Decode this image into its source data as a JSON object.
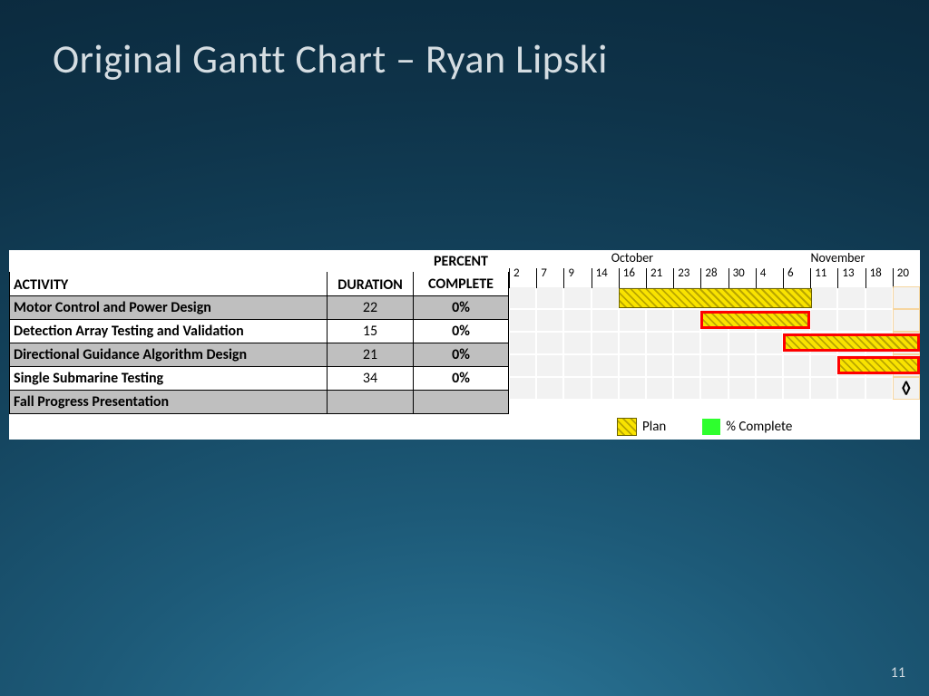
{
  "slide": {
    "title": "Original Gantt Chart – Ryan Lipski",
    "page_number": "11"
  },
  "headers": {
    "activity": "ACTIVITY",
    "duration": "DURATION",
    "percent_top": "PERCENT",
    "percent_bottom": "COMPLETE"
  },
  "months": [
    {
      "label": "October",
      "span_cols": 9
    },
    {
      "label": "November",
      "span_cols": 6
    }
  ],
  "ticks": [
    "2",
    "7",
    "9",
    "14",
    "16",
    "21",
    "23",
    "28",
    "30",
    "4",
    "6",
    "11",
    "13",
    "18",
    "20"
  ],
  "nTicks": 15,
  "today_col": 14,
  "rows": [
    {
      "activity": "Motor Control and Power Design",
      "duration": "22",
      "pct": "0%",
      "shade": true,
      "bars": [
        {
          "start": 4,
          "span": 7,
          "red": false
        }
      ]
    },
    {
      "activity": "Detection Array Testing and Validation",
      "duration": "15",
      "pct": "0%",
      "shade": false,
      "bars": [
        {
          "start": 7,
          "span": 4,
          "red": true
        }
      ]
    },
    {
      "activity": "Directional Guidance Algorithm Design",
      "duration": "21",
      "pct": "0%",
      "shade": true,
      "bars": [
        {
          "start": 10,
          "span": 5,
          "red": true
        }
      ]
    },
    {
      "activity": "Single Submarine Testing",
      "duration": "34",
      "pct": "0%",
      "shade": false,
      "bars": [
        {
          "start": 12,
          "span": 3,
          "red": true
        }
      ]
    },
    {
      "activity": "Fall Progress Presentation",
      "duration": "",
      "pct": "",
      "shade": true,
      "bars": [],
      "milestone_col": 14,
      "milestone_glyph": "◊"
    }
  ],
  "legend": {
    "plan": "Plan",
    "pct": "% Complete"
  },
  "colors": {
    "plan_fill": "#f9e300",
    "plan_stripe": "#b8a500",
    "complete": "#2eff2e",
    "red_outline": "#ff0000",
    "grey": "#bfbfbf",
    "cell_bg": "#f2f2f2",
    "today": "#f5cf8f"
  }
}
